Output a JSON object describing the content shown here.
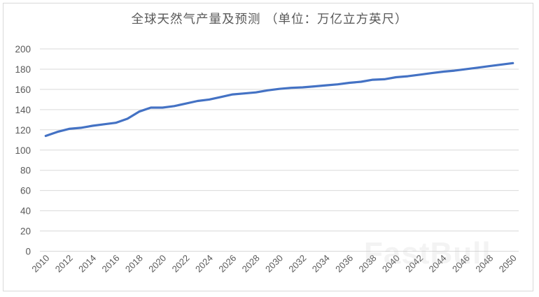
{
  "chart": {
    "title": "全球天然气产量及预测 （单位：万亿立方英尺）",
    "line_color": "#4472C4",
    "grid_color": "#d9d9d9",
    "text_color": "#595959",
    "watermark": "FastBull"
  },
  "chart_data": {
    "type": "line",
    "title": "全球天然气产量及预测 （单位：万亿立方英尺）",
    "xlabel": "",
    "ylabel": "",
    "ylim": [
      0,
      200
    ],
    "yticks": [
      0,
      20,
      40,
      60,
      80,
      100,
      120,
      140,
      160,
      180,
      200
    ],
    "grid": true,
    "legend": null,
    "x": [
      2010,
      2011,
      2012,
      2013,
      2014,
      2015,
      2016,
      2017,
      2018,
      2019,
      2020,
      2021,
      2022,
      2023,
      2024,
      2025,
      2026,
      2027,
      2028,
      2029,
      2030,
      2031,
      2032,
      2033,
      2034,
      2035,
      2036,
      2037,
      2038,
      2039,
      2040,
      2041,
      2042,
      2043,
      2044,
      2045,
      2046,
      2047,
      2048,
      2049,
      2050
    ],
    "x_tick_labels": [
      "2010",
      "2012",
      "2014",
      "2016",
      "2018",
      "2020",
      "2022",
      "2024",
      "2026",
      "2028",
      "2030",
      "2032",
      "2034",
      "2036",
      "2038",
      "2040",
      "2042",
      "2044",
      "2046",
      "2048",
      "2050"
    ],
    "series": [
      {
        "name": "全球天然气产量",
        "values": [
          114,
          118,
          121,
          122,
          124,
          125.5,
          127,
          131,
          138,
          142,
          142,
          143.5,
          146,
          148.5,
          150,
          152.5,
          155,
          156,
          157,
          159,
          160.5,
          161.5,
          162,
          163,
          164,
          165,
          166.5,
          167.5,
          169.5,
          170,
          172,
          173,
          174.5,
          176,
          177.5,
          178.5,
          180,
          181.5,
          183,
          184.5,
          186
        ]
      }
    ]
  }
}
